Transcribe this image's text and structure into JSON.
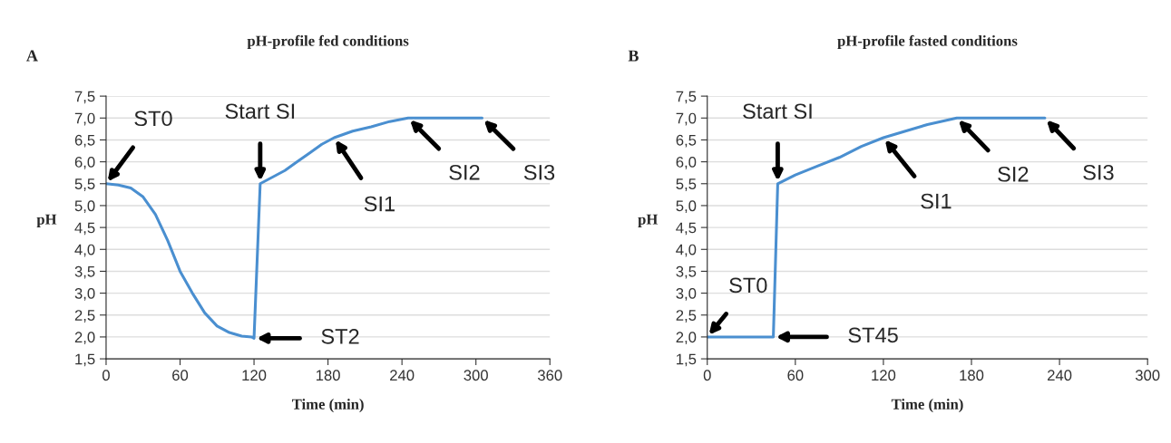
{
  "chart_data": [
    {
      "type": "line",
      "title": "pH-profile fed conditions",
      "xlabel": "Time (min)",
      "ylabel": "pH",
      "annotations": [
        "A",
        {
          "text": "ST0",
          "x": 0,
          "y": 5.5
        },
        {
          "text": "Start SI",
          "x": 125,
          "y": 5.5
        },
        {
          "text": "ST2",
          "x": 120,
          "y": 1.97
        },
        {
          "text": "SI1",
          "x": 185,
          "y": 6.55
        },
        {
          "text": "SI2",
          "x": 245,
          "y": 7.0
        },
        {
          "text": "SI3",
          "x": 305,
          "y": 7.0
        }
      ],
      "series": [
        {
          "color": "#4a8fd0",
          "x": [
            0,
            10,
            20,
            30,
            40,
            50,
            60,
            70,
            80,
            90,
            100,
            110,
            118,
            120,
            125,
            135,
            145,
            155,
            165,
            175,
            185,
            200,
            215,
            230,
            245,
            305
          ],
          "values": [
            5.5,
            5.47,
            5.4,
            5.2,
            4.8,
            4.2,
            3.5,
            3.0,
            2.55,
            2.25,
            2.1,
            2.02,
            2.0,
            1.97,
            5.5,
            5.65,
            5.8,
            6.0,
            6.2,
            6.4,
            6.55,
            6.7,
            6.8,
            6.92,
            7.0,
            7.0
          ]
        }
      ],
      "xlim": [
        0,
        360
      ],
      "xticks": [
        0,
        60,
        120,
        180,
        240,
        300,
        360
      ],
      "ylim": [
        1.5,
        7.5
      ],
      "yticks": [
        {
          "value": 1.5,
          "label": "1,5"
        },
        {
          "value": 2.0,
          "label": "2,0"
        },
        {
          "value": 2.5,
          "label": "2,5"
        },
        {
          "value": 3.0,
          "label": "3,0"
        },
        {
          "value": 3.5,
          "label": "3,5"
        },
        {
          "value": 4.0,
          "label": "4,0"
        },
        {
          "value": 4.5,
          "label": "4,5"
        },
        {
          "value": 5.0,
          "label": "5,0"
        },
        {
          "value": 5.5,
          "label": "5,5"
        },
        {
          "value": 6.0,
          "label": "6,0"
        },
        {
          "value": 6.5,
          "label": "6,5"
        },
        {
          "value": 7.0,
          "label": "7,0"
        },
        {
          "value": 7.5,
          "label": "7,5"
        }
      ],
      "grid": "y"
    },
    {
      "type": "line",
      "title": "pH-profile fasted conditions",
      "xlabel": "Time (min)",
      "ylabel": "pH",
      "annotations": [
        "B",
        {
          "text": "ST0",
          "x": 0,
          "y": 2.0
        },
        {
          "text": "Start SI",
          "x": 48,
          "y": 5.5
        },
        {
          "text": "ST45",
          "x": 45,
          "y": 2.0
        },
        {
          "text": "SI1",
          "x": 120,
          "y": 6.55
        },
        {
          "text": "SI2",
          "x": 170,
          "y": 7.0
        },
        {
          "text": "SI3",
          "x": 230,
          "y": 7.0
        }
      ],
      "series": [
        {
          "color": "#4a8fd0",
          "x": [
            0,
            45,
            48,
            60,
            75,
            90,
            105,
            120,
            135,
            150,
            170,
            230
          ],
          "values": [
            2.0,
            2.0,
            5.5,
            5.7,
            5.9,
            6.1,
            6.35,
            6.55,
            6.7,
            6.85,
            7.0,
            7.0
          ]
        }
      ],
      "xlim": [
        0,
        300
      ],
      "xticks": [
        0,
        60,
        120,
        180,
        240,
        300
      ],
      "ylim": [
        1.5,
        7.5
      ],
      "yticks": [
        {
          "value": 1.5,
          "label": "1,5"
        },
        {
          "value": 2.0,
          "label": "2,0"
        },
        {
          "value": 2.5,
          "label": "2,5"
        },
        {
          "value": 3.0,
          "label": "3,0"
        },
        {
          "value": 3.5,
          "label": "3,5"
        },
        {
          "value": 4.0,
          "label": "4,0"
        },
        {
          "value": 4.5,
          "label": "4,5"
        },
        {
          "value": 5.0,
          "label": "5,0"
        },
        {
          "value": 5.5,
          "label": "5,5"
        },
        {
          "value": 6.0,
          "label": "6,0"
        },
        {
          "value": 6.5,
          "label": "6,5"
        },
        {
          "value": 7.0,
          "label": "7,0"
        },
        {
          "value": 7.5,
          "label": "7,5"
        }
      ],
      "grid": "y"
    }
  ]
}
